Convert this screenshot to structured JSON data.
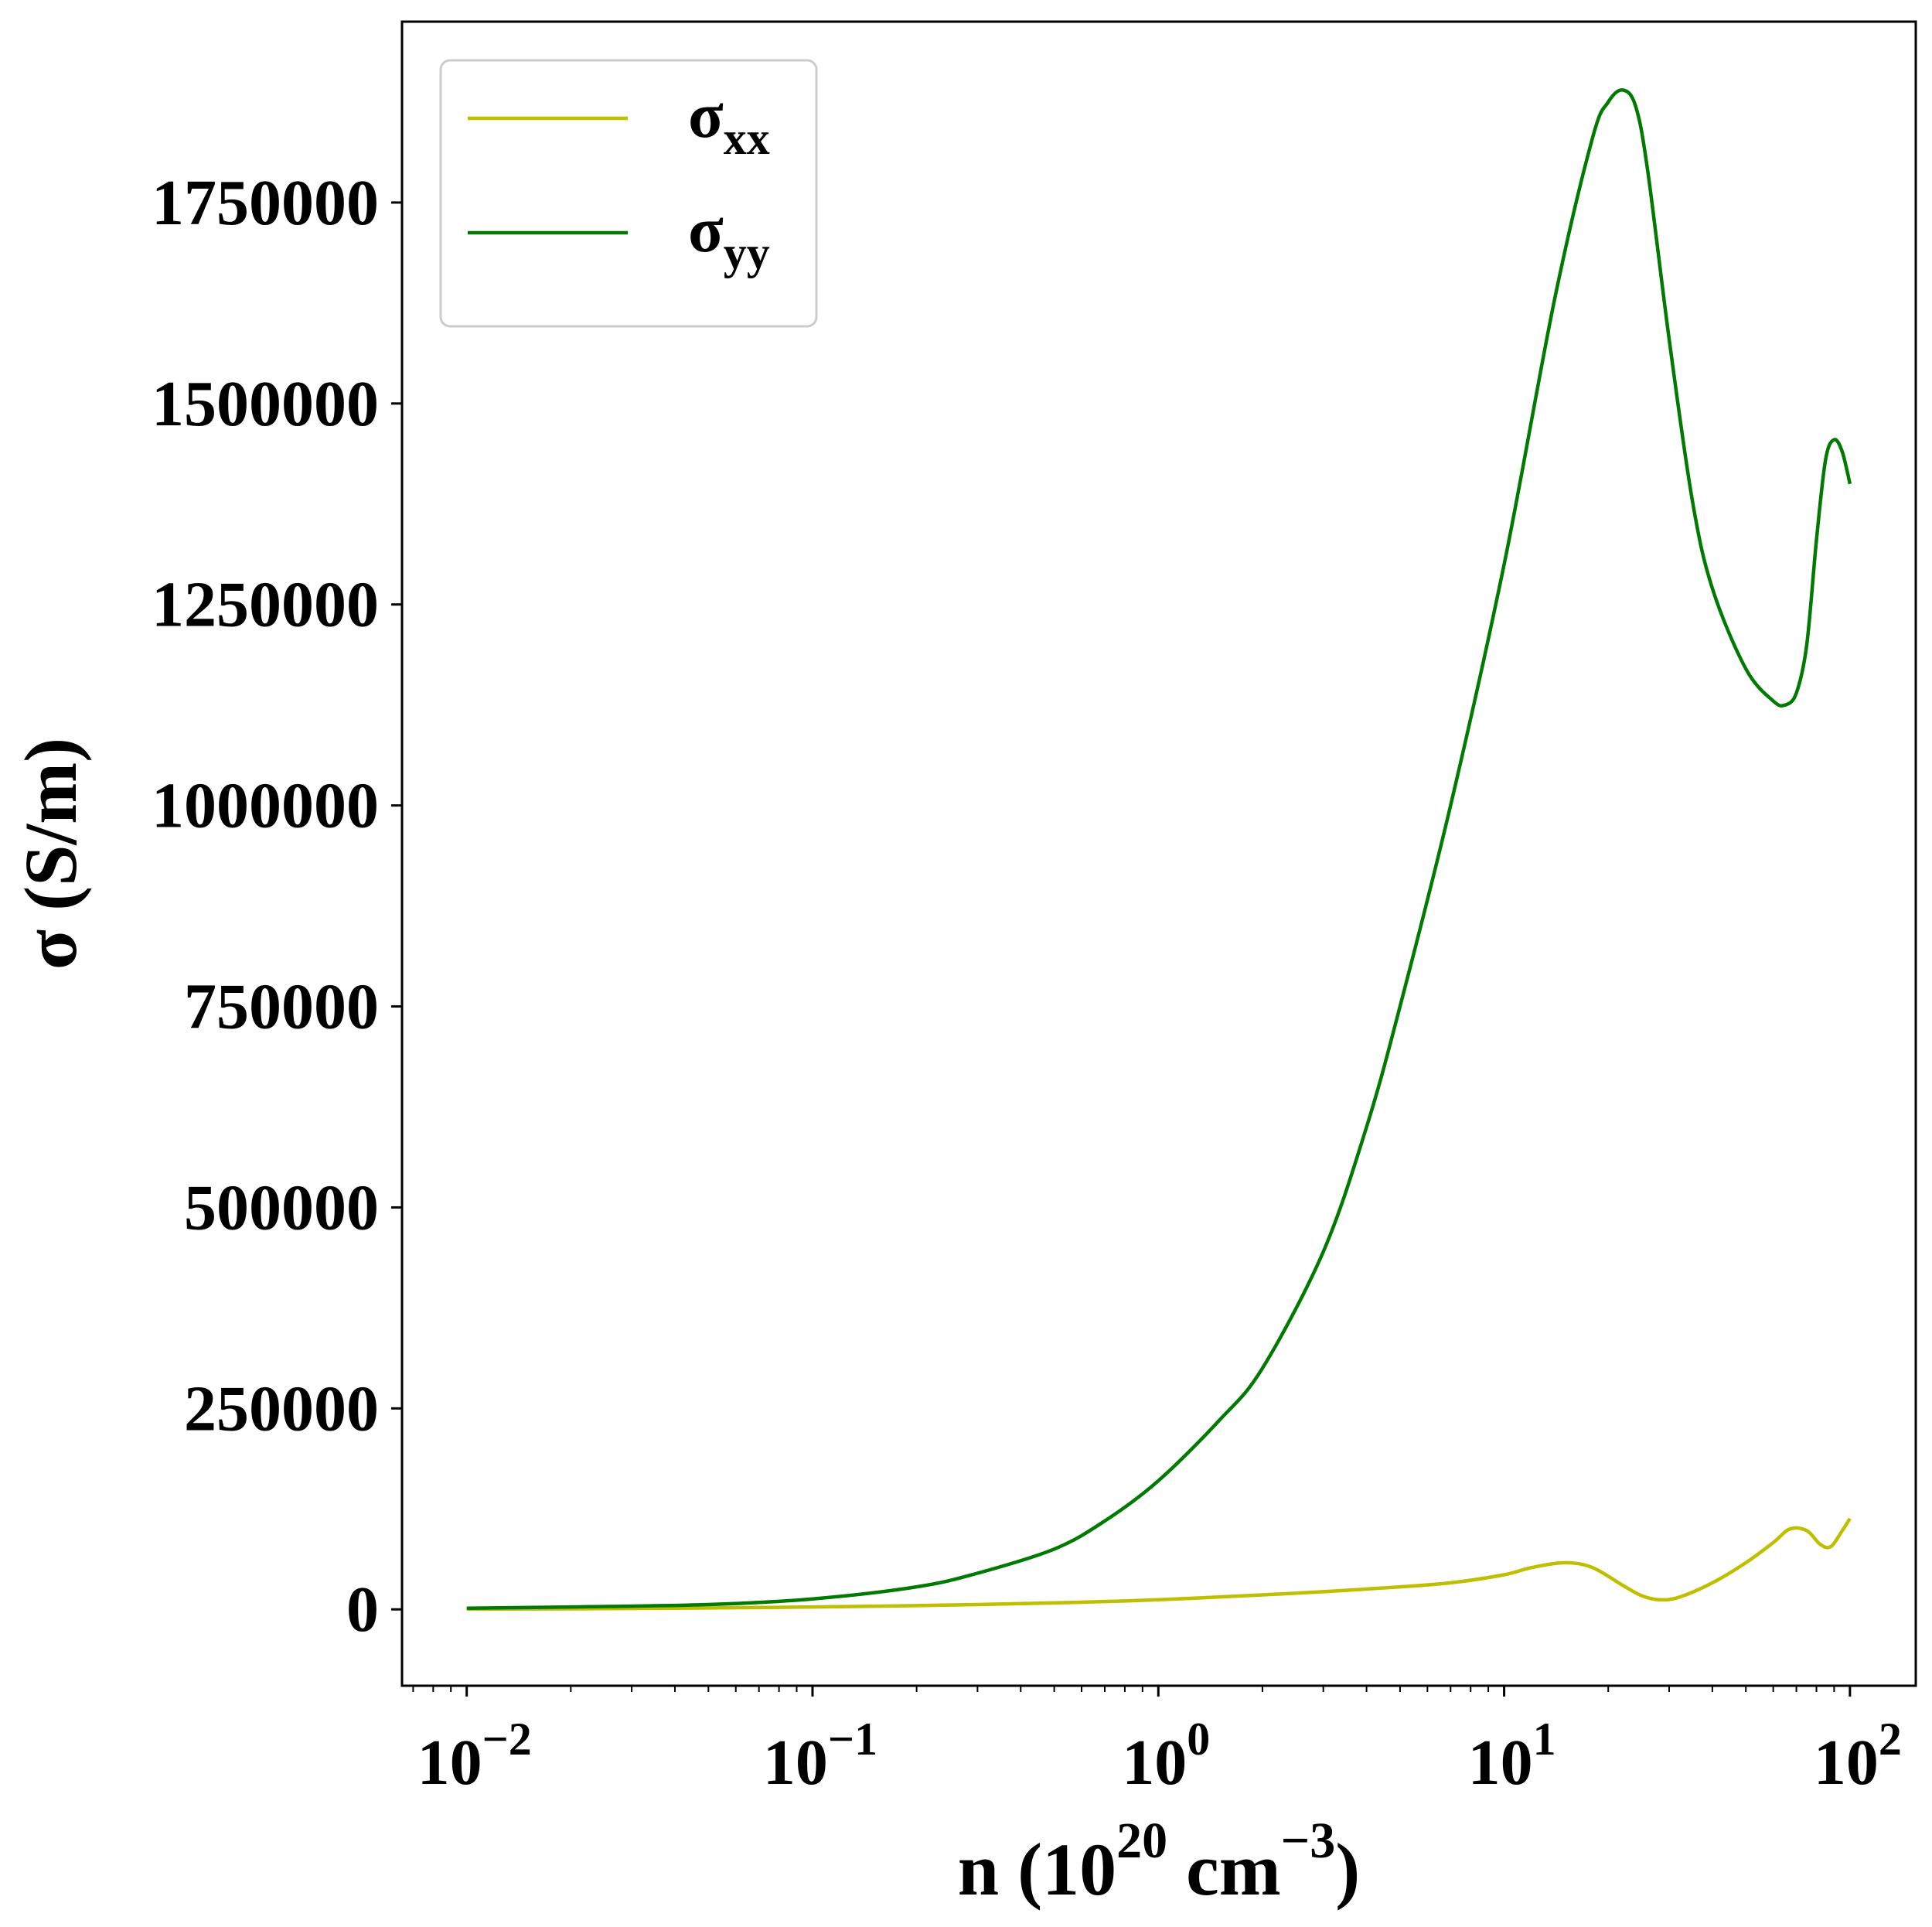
{
  "chart_data": {
    "type": "line",
    "xlabel": "n (10^20 cm^-3)",
    "xlabel_parts": {
      "base": "n (10",
      "exp1": "20",
      "mid": " cm",
      "exp2": "−3",
      "end": ")"
    },
    "ylabel": "σ (S/m)",
    "x_scale": "log",
    "xlim": [
      0.0065,
      155
    ],
    "ylim": [
      -95000,
      1975000
    ],
    "x_ticks": [
      {
        "value": 0.01,
        "base": "10",
        "exp": "−2"
      },
      {
        "value": 0.1,
        "base": "10",
        "exp": "−1"
      },
      {
        "value": 1,
        "base": "10",
        "exp": "0"
      },
      {
        "value": 10,
        "base": "10",
        "exp": "1"
      },
      {
        "value": 100,
        "base": "10",
        "exp": "2"
      }
    ],
    "y_ticks": [
      {
        "value": 0,
        "label": "0"
      },
      {
        "value": 250000,
        "label": "250000"
      },
      {
        "value": 500000,
        "label": "500000"
      },
      {
        "value": 750000,
        "label": "750000"
      },
      {
        "value": 1000000,
        "label": "1000000"
      },
      {
        "value": 1250000,
        "label": "1250000"
      },
      {
        "value": 1500000,
        "label": "1500000"
      },
      {
        "value": 1750000,
        "label": "1750000"
      }
    ],
    "grid": false,
    "legend_position": "top-left",
    "series": [
      {
        "name": "σxx",
        "symbol": "σ",
        "subscript": "xx",
        "color": "#bfbf00",
        "x": [
          0.01,
          0.02,
          0.05,
          0.1,
          0.2,
          0.5,
          1,
          2,
          3,
          5,
          7,
          10,
          12,
          15,
          18,
          22,
          25,
          28,
          32,
          40,
          50,
          60,
          67,
          75,
          82,
          88,
          95,
          100
        ],
        "y": [
          300,
          700,
          1800,
          3000,
          4700,
          8000,
          12000,
          18000,
          22000,
          28000,
          33000,
          43000,
          52000,
          58000,
          52000,
          30000,
          17000,
          12000,
          15000,
          33000,
          58000,
          83000,
          100000,
          98000,
          81000,
          78000,
          98000,
          113000
        ]
      },
      {
        "name": "σyy",
        "symbol": "σ",
        "subscript": "yy",
        "color": "#007a00",
        "x": [
          0.01,
          0.02,
          0.05,
          0.1,
          0.2,
          0.3,
          0.5,
          0.7,
          1,
          1.5,
          2,
          3,
          4,
          5,
          7,
          10,
          14,
          18,
          20,
          22,
          24,
          26,
          30,
          35,
          40,
          50,
          60,
          65,
          70,
          75,
          80,
          85,
          90,
          95,
          100
        ],
        "y": [
          1500,
          3000,
          6000,
          13000,
          28000,
          45000,
          75000,
          110000,
          160000,
          235000,
          300000,
          445000,
          600000,
          750000,
          1000000,
          1300000,
          1630000,
          1830000,
          1875000,
          1890000,
          1870000,
          1790000,
          1580000,
          1380000,
          1270000,
          1170000,
          1130000,
          1125000,
          1140000,
          1200000,
          1330000,
          1430000,
          1455000,
          1440000,
          1400000
        ]
      }
    ]
  }
}
